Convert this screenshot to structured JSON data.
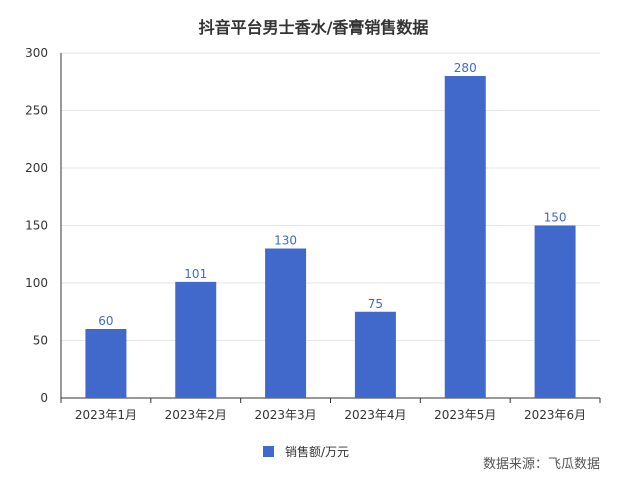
{
  "chart_data": {
    "type": "bar",
    "title": "抖音平台男士香水/香膏销售数据",
    "categories": [
      "2023年1月",
      "2023年2月",
      "2023年3月",
      "2023年4月",
      "2023年5月",
      "2023年6月"
    ],
    "series": [
      {
        "name": "销售额/万元",
        "values": [
          60,
          101,
          130,
          75,
          280,
          150
        ],
        "color": "#4169CC"
      }
    ],
    "xlabel": "",
    "ylabel": "",
    "ylim": [
      0,
      300
    ],
    "yticks": [
      0,
      50,
      100,
      150,
      200,
      250,
      300
    ],
    "grid": true,
    "legend_position": "bottom-center",
    "data_labels": true
  },
  "source_text": "数据来源：飞瓜数据"
}
